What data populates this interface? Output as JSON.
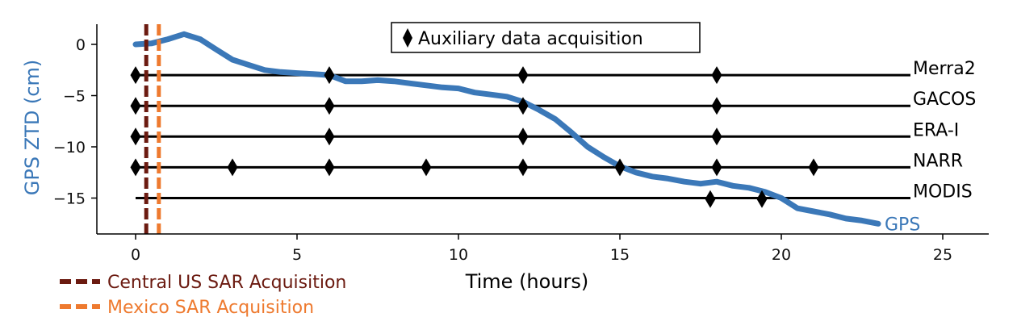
{
  "chart_data": {
    "type": "line",
    "xlabel": "Time (hours)",
    "ylabel": "GPS ZTD (cm)",
    "xlim": [
      -1.2,
      26.5
    ],
    "ylim": [
      -18.5,
      2
    ],
    "xticks": [
      0,
      5,
      10,
      15,
      20,
      25
    ],
    "yticks": [
      0,
      -5,
      -10,
      -15
    ],
    "colors": {
      "gps": "#3b78b8",
      "central_us": "#6b1a10",
      "mexico": "#ee7a2f",
      "rows": "#000000"
    },
    "gps_series": {
      "name": "GPS",
      "x": [
        0,
        0.5,
        1,
        1.5,
        2,
        2.5,
        3,
        3.5,
        4,
        4.5,
        5,
        5.5,
        6,
        6.5,
        7,
        7.5,
        8,
        8.5,
        9,
        9.5,
        10,
        10.5,
        11,
        11.5,
        12,
        12.5,
        13,
        13.5,
        14,
        14.5,
        15,
        15.5,
        16,
        16.5,
        17,
        17.5,
        18,
        18.5,
        19,
        19.5,
        20,
        20.5,
        21,
        21.5,
        22,
        22.5,
        23
      ],
      "y": [
        0,
        0.1,
        0.5,
        1.0,
        0.5,
        -0.5,
        -1.5,
        -2.0,
        -2.5,
        -2.7,
        -2.8,
        -2.9,
        -3.0,
        -3.6,
        -3.6,
        -3.5,
        -3.6,
        -3.8,
        -4.0,
        -4.2,
        -4.3,
        -4.7,
        -4.9,
        -5.1,
        -5.6,
        -6.4,
        -7.3,
        -8.6,
        -10.0,
        -11.0,
        -11.9,
        -12.5,
        -12.9,
        -13.1,
        -13.4,
        -13.6,
        -13.4,
        -13.8,
        -14.0,
        -14.4,
        -15.0,
        -16.0,
        -16.3,
        -16.6,
        -17.0,
        -17.2,
        -17.5
      ]
    },
    "gps_label": "GPS",
    "rows": [
      {
        "label": "Merra2",
        "y": -3,
        "x_start": 0,
        "x_end": 24,
        "markers": [
          0,
          6,
          12,
          18
        ]
      },
      {
        "label": "GACOS",
        "y": -6,
        "x_start": 0,
        "x_end": 24,
        "markers": [
          0,
          6,
          12,
          18
        ]
      },
      {
        "label": "ERA-I",
        "y": -9,
        "x_start": 0,
        "x_end": 24,
        "markers": [
          0,
          6,
          12,
          18
        ]
      },
      {
        "label": "NARR",
        "y": -12,
        "x_start": 0,
        "x_end": 24,
        "markers": [
          0,
          3,
          6,
          9,
          12,
          15,
          18,
          21
        ]
      },
      {
        "label": "MODIS",
        "y": -15,
        "x_start": 0,
        "x_end": 24,
        "markers": [
          17.8,
          19.4
        ],
        "marker_y": -15.1
      }
    ],
    "acquisitions": [
      {
        "label": "Central US SAR Acquisition",
        "x": 0.33,
        "color_key": "central_us"
      },
      {
        "label": "Mexico SAR Acquisition",
        "x": 0.72,
        "color_key": "mexico"
      }
    ],
    "marker_legend": "Auxiliary data acquisition",
    "marker_legend_placement": "top-center",
    "acquisition_legend_placement": "bottom-left",
    "grid": false
  }
}
